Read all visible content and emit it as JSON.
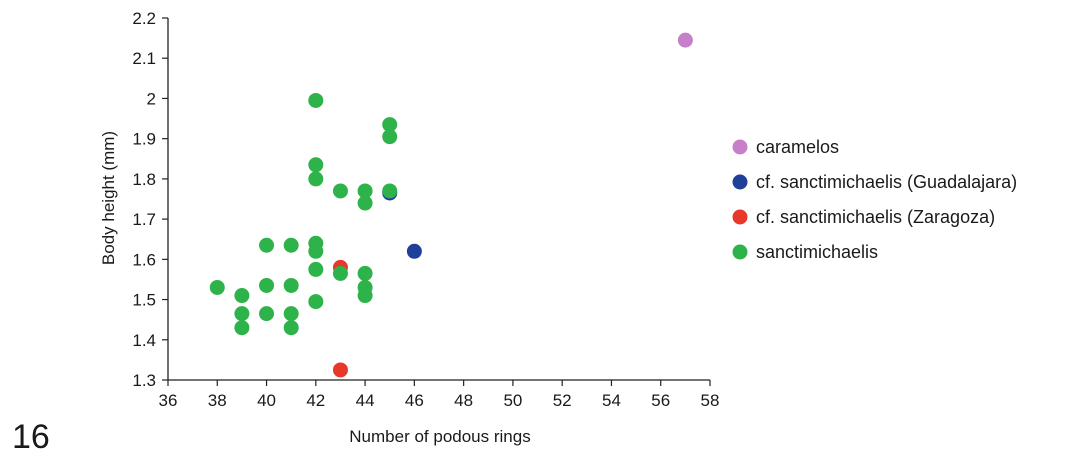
{
  "figure_number": "16",
  "chart_data": {
    "type": "scatter",
    "title": "",
    "xlabel": "Number of podous rings",
    "ylabel": "Body height (mm)",
    "xlim": [
      36,
      58
    ],
    "ylim": [
      1.3,
      2.2
    ],
    "xticks": [
      36,
      38,
      40,
      42,
      44,
      46,
      48,
      50,
      52,
      54,
      56,
      58
    ],
    "yticks": [
      1.3,
      1.4,
      1.5,
      1.6,
      1.7,
      1.8,
      1.9,
      2,
      2.1,
      2.2
    ],
    "ytick_labels": [
      "1.3",
      "1.4",
      "1.5",
      "1.6",
      "1.7",
      "1.8",
      "1.9",
      "2",
      "2.1",
      "2.2"
    ],
    "grid": false,
    "legend_position": "right",
    "series": [
      {
        "name": "caramelos",
        "color": "#c77fc9",
        "points": [
          [
            57,
            2.145
          ]
        ]
      },
      {
        "name": "cf. sanctimichaelis (Guadalajara)",
        "color": "#1f3f9a",
        "points": [
          [
            45,
            1.765
          ],
          [
            46,
            1.62
          ]
        ]
      },
      {
        "name": "cf. sanctimichaelis (Zaragoza)",
        "color": "#e8382b",
        "points": [
          [
            43,
            1.58
          ],
          [
            43,
            1.325
          ]
        ]
      },
      {
        "name": "sanctimichaelis",
        "color": "#2db34a",
        "points": [
          [
            38,
            1.53
          ],
          [
            39,
            1.51
          ],
          [
            39,
            1.465
          ],
          [
            39,
            1.43
          ],
          [
            40,
            1.635
          ],
          [
            40,
            1.535
          ],
          [
            40,
            1.465
          ],
          [
            41,
            1.635
          ],
          [
            41,
            1.535
          ],
          [
            41,
            1.465
          ],
          [
            41,
            1.43
          ],
          [
            42,
            1.995
          ],
          [
            42,
            1.835
          ],
          [
            42,
            1.8
          ],
          [
            42,
            1.64
          ],
          [
            42,
            1.62
          ],
          [
            42,
            1.575
          ],
          [
            42,
            1.495
          ],
          [
            43,
            1.77
          ],
          [
            43,
            1.565
          ],
          [
            44,
            1.77
          ],
          [
            44,
            1.74
          ],
          [
            44,
            1.565
          ],
          [
            44,
            1.53
          ],
          [
            44,
            1.51
          ],
          [
            45,
            1.935
          ],
          [
            45,
            1.905
          ],
          [
            45,
            1.77
          ]
        ]
      }
    ]
  }
}
